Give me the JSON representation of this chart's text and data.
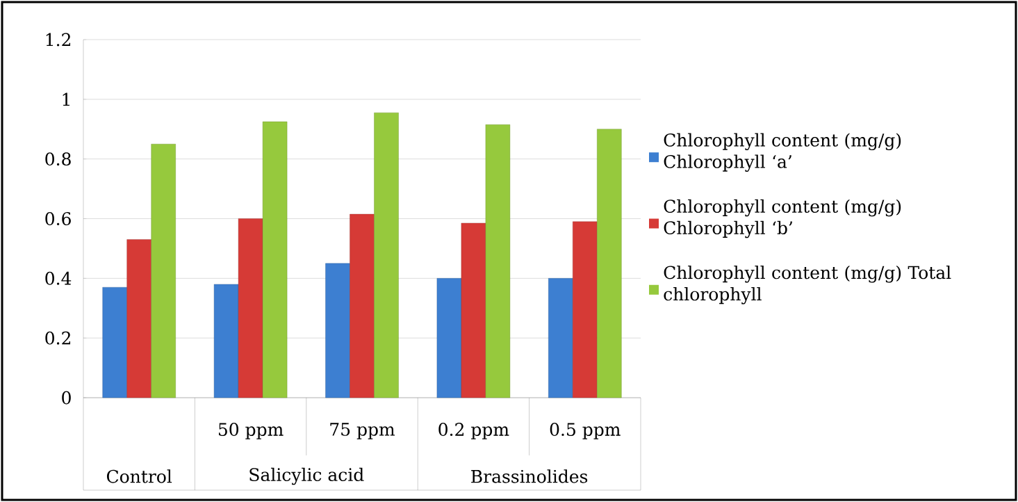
{
  "chart_data": {
    "type": "bar",
    "categories": [
      null,
      "50 ppm",
      "75 ppm",
      "0.2 ppm",
      "0.5 ppm"
    ],
    "annotations": [
      "Control",
      "Salicylic acid",
      "Brassinolides"
    ],
    "series": [
      {
        "name": "Chlorophyll content (mg/g) Chlorophyll ‘a’",
        "color": "#3d7fd1",
        "values": [
          0.37,
          0.38,
          0.45,
          0.4,
          0.4
        ]
      },
      {
        "name": "Chlorophyll content (mg/g) Chlorophyll ‘b’",
        "color": "#d63a36",
        "values": [
          0.53,
          0.6,
          0.615,
          0.585,
          0.59
        ]
      },
      {
        "name": "Chlorophyll content (mg/g) Total chlorophyll",
        "color": "#96c93d",
        "values": [
          0.85,
          0.925,
          0.955,
          0.915,
          0.9
        ]
      }
    ],
    "ylim": [
      0,
      1.2
    ],
    "yticks": [
      0,
      0.2,
      0.4,
      0.6,
      0.8,
      1,
      1.2
    ],
    "grid": "y",
    "legend": "right"
  }
}
